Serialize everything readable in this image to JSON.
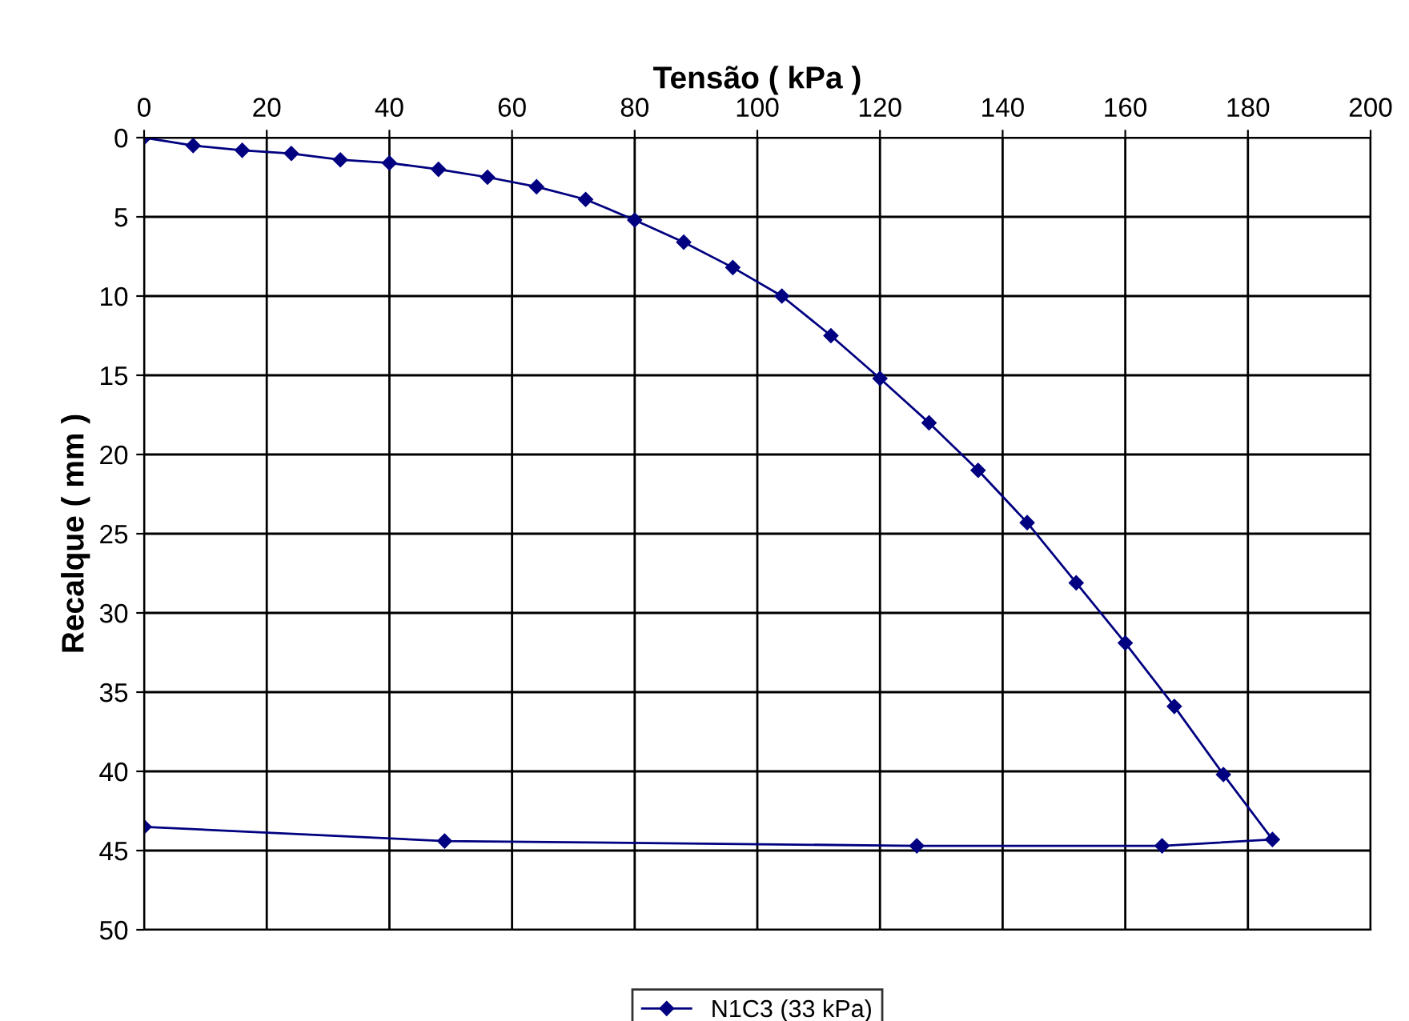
{
  "chart_data": {
    "type": "line",
    "xlabel": "Tensão ( kPa )",
    "ylabel": "Recalque ( mm )",
    "xlim": [
      0,
      200
    ],
    "xticks": [
      0,
      20,
      40,
      60,
      80,
      100,
      120,
      140,
      160,
      180,
      200
    ],
    "ylim": [
      50,
      0
    ],
    "yticks": [
      0,
      5,
      10,
      15,
      20,
      25,
      30,
      35,
      40,
      45,
      50
    ],
    "grid": true,
    "legend": "bottom",
    "marker": "diamond",
    "line_style": "solid",
    "series": [
      {
        "name": "N1C3 (33 kPa)",
        "color": "#000080",
        "x": [
          0,
          8,
          16,
          24,
          32,
          40,
          48,
          56,
          64,
          72,
          80,
          88,
          96,
          104,
          112,
          120,
          128,
          136,
          144,
          152,
          160,
          168,
          176,
          184,
          166,
          126,
          49,
          0
        ],
        "values": [
          0,
          0.5,
          0.8,
          1.0,
          1.4,
          1.6,
          2.0,
          2.5,
          3.1,
          3.9,
          5.2,
          6.6,
          8.2,
          10.0,
          12.5,
          15.2,
          18.0,
          21.0,
          24.3,
          28.1,
          31.9,
          35.9,
          40.2,
          44.3,
          44.7,
          44.7,
          44.4,
          43.5
        ]
      }
    ]
  }
}
